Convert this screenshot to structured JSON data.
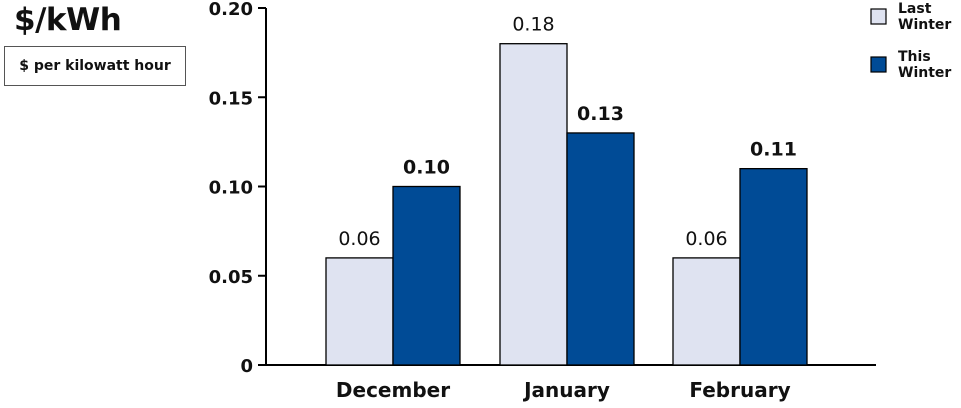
{
  "chart_data": {
    "type": "bar",
    "title": "$/kWh",
    "subtitle": "$ per kilowatt hour",
    "categories": [
      "December",
      "January",
      "February"
    ],
    "series": [
      {
        "name": "Last Winter",
        "values": [
          0.06,
          0.18,
          0.06
        ],
        "labels": [
          "0.06",
          "0.18",
          "0.06"
        ],
        "color": "#dfe3f1",
        "label_bold": false
      },
      {
        "name": "This Winter",
        "values": [
          0.1,
          0.13,
          0.11
        ],
        "labels": [
          "0.10",
          "0.13",
          "0.11"
        ],
        "color": "#004b96",
        "label_bold": true
      }
    ],
    "yticks": [
      "0",
      "0.05",
      "0.10",
      "0.15",
      "0.20"
    ],
    "ylim": [
      0,
      0.2
    ],
    "grid": false,
    "legend_position": "top-right"
  }
}
